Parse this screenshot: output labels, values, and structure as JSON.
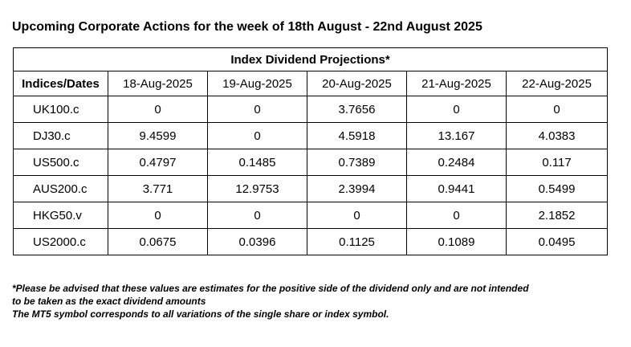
{
  "title": "Upcoming Corporate Actions for the week of 18th August - 22nd August 2025",
  "table": {
    "caption": "Index Dividend Projections*",
    "first_col_header": "Indices/Dates",
    "dates": [
      "18-Aug-2025",
      "19-Aug-2025",
      "20-Aug-2025",
      "21-Aug-2025",
      "22-Aug-2025"
    ],
    "rows": [
      {
        "symbol": "UK100.c",
        "values": [
          "0",
          "0",
          "3.7656",
          "0",
          "0"
        ]
      },
      {
        "symbol": "DJ30.c",
        "values": [
          "9.4599",
          "0",
          "4.5918",
          "13.167",
          "4.0383"
        ]
      },
      {
        "symbol": "US500.c",
        "values": [
          "0.4797",
          "0.1485",
          "0.7389",
          "0.2484",
          "0.117"
        ]
      },
      {
        "symbol": "AUS200.c",
        "values": [
          "3.771",
          "12.9753",
          "2.3994",
          "0.9441",
          "0.5499"
        ]
      },
      {
        "symbol": "HKG50.v",
        "values": [
          "0",
          "0",
          "0",
          "0",
          "2.1852"
        ]
      },
      {
        "symbol": "US2000.c",
        "values": [
          "0.0675",
          "0.0396",
          "0.1125",
          "0.1089",
          "0.0495"
        ]
      }
    ]
  },
  "notes": {
    "line1": "*Please be advised that these values are estimates for the positive side of the dividend only and are not intended",
    "line2": "to be taken as the exact dividend amounts",
    "line3": "The MT5 symbol corresponds to all variations of the single share or index symbol."
  }
}
